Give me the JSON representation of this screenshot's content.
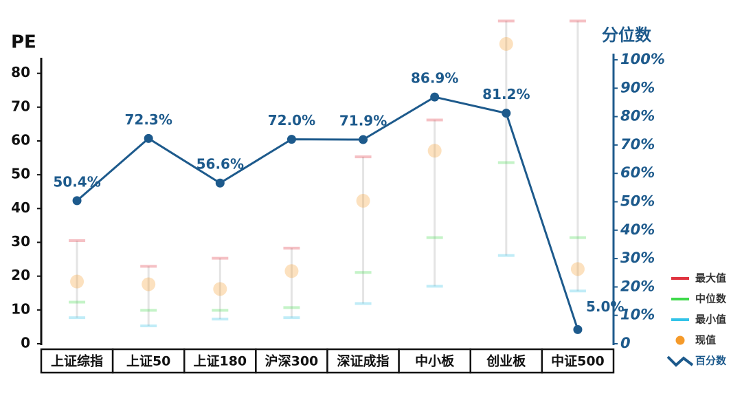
{
  "chart_data": {
    "type": "range-line",
    "ylabel": "PE",
    "y2label": "分位数",
    "categories": [
      "上证综指",
      "上证50",
      "上证180",
      "沪深300",
      "深证成指",
      "中小板",
      "创业板",
      "中证500"
    ],
    "series": [
      {
        "name": "最大值",
        "color": "#e0333f",
        "values": [
          30.5,
          22.9,
          25.3,
          28.3,
          55.3,
          66.2,
          95.5,
          95.5
        ]
      },
      {
        "name": "中位数",
        "color": "#3fd94a",
        "values": [
          12.3,
          9.9,
          9.9,
          10.7,
          21.1,
          31.4,
          53.6,
          31.4
        ]
      },
      {
        "name": "最小值",
        "color": "#33c3e8",
        "values": [
          7.7,
          5.3,
          7.3,
          7.7,
          11.9,
          17.0,
          26.1,
          15.6
        ]
      },
      {
        "name": "现值",
        "color": "#f59a2a",
        "values": [
          18.4,
          17.6,
          16.2,
          21.5,
          42.3,
          57.1,
          88.7,
          22.1
        ]
      },
      {
        "name": "百分数",
        "color": "#1d5a8c",
        "axis": "y2",
        "values": [
          50.4,
          72.3,
          56.6,
          72.0,
          71.9,
          86.9,
          81.2,
          5.0
        ],
        "value_labels": [
          "50.4%",
          "72.3%",
          "56.6%",
          "72.0%",
          "71.9%",
          "86.9%",
          "81.2%",
          "5.0%"
        ]
      }
    ],
    "ylim": [
      0,
      84
    ],
    "yticks": [
      0,
      10,
      20,
      30,
      40,
      50,
      60,
      70,
      80
    ],
    "y2lim": [
      0,
      100
    ],
    "y2ticks": [
      {
        "value": 0,
        "label": "0"
      },
      {
        "value": 10,
        "label": "10%"
      },
      {
        "value": 20,
        "label": "20%"
      },
      {
        "value": 30,
        "label": "30%"
      },
      {
        "value": 40,
        "label": "40%"
      },
      {
        "value": 50,
        "label": "50%"
      },
      {
        "value": 60,
        "label": "60%"
      },
      {
        "value": 70,
        "label": "70%"
      },
      {
        "value": 80,
        "label": "80%"
      },
      {
        "value": 90,
        "label": "90%"
      },
      {
        "value": 100,
        "label": "100%"
      }
    ],
    "legend": "right"
  }
}
